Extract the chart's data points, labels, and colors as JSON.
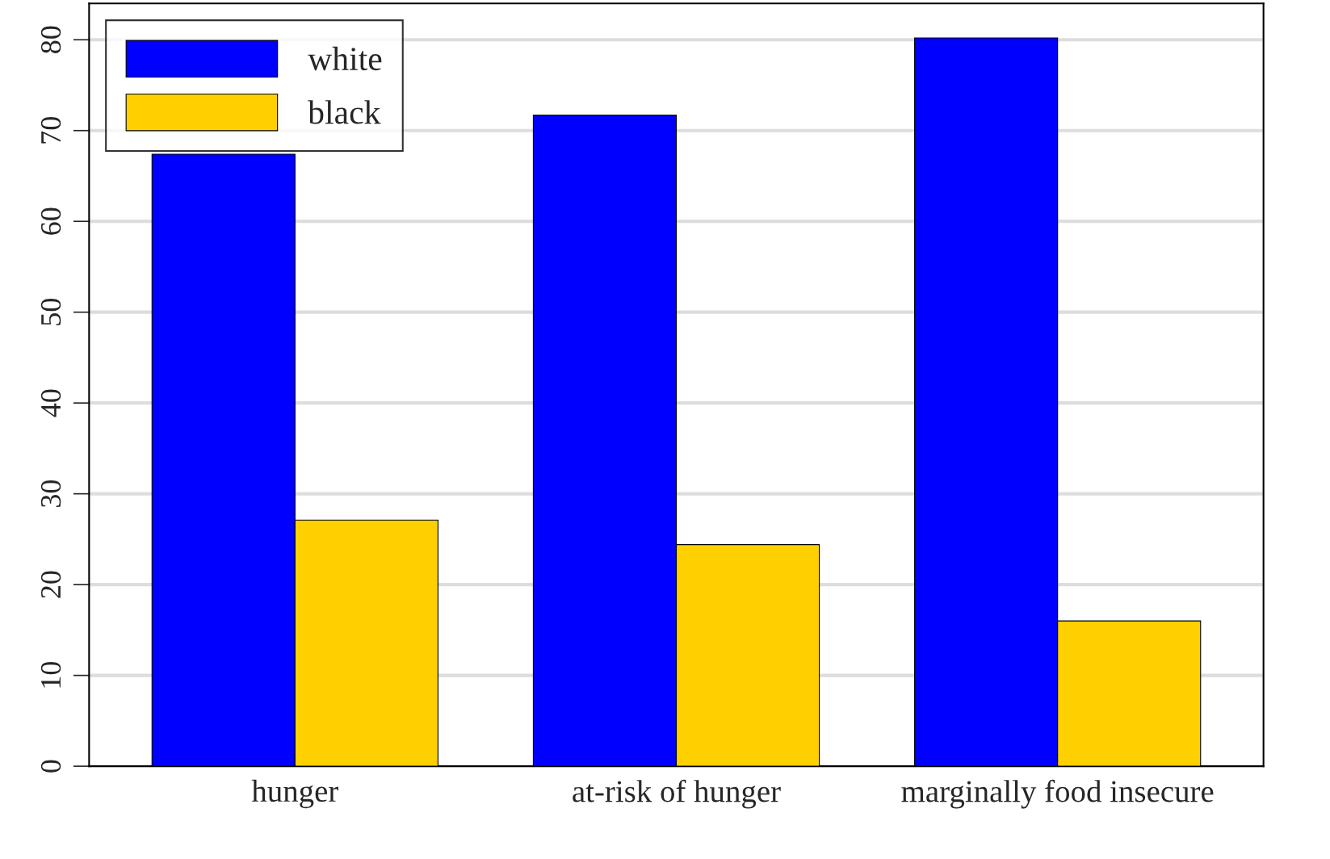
{
  "chart_data": {
    "type": "bar",
    "categories": [
      "hunger",
      "at-risk of hunger",
      "marginally food insecure"
    ],
    "series": [
      {
        "name": "white",
        "color": "#0000ff",
        "values": [
          67.4,
          71.7,
          80.2
        ]
      },
      {
        "name": "black",
        "color": "#ffd000",
        "values": [
          27.1,
          24.4,
          16.0
        ]
      }
    ],
    "ylim": [
      0,
      84
    ],
    "yticks": [
      0,
      10,
      20,
      30,
      40,
      50,
      60,
      70,
      80
    ],
    "grid": "y",
    "legend": "top left"
  }
}
